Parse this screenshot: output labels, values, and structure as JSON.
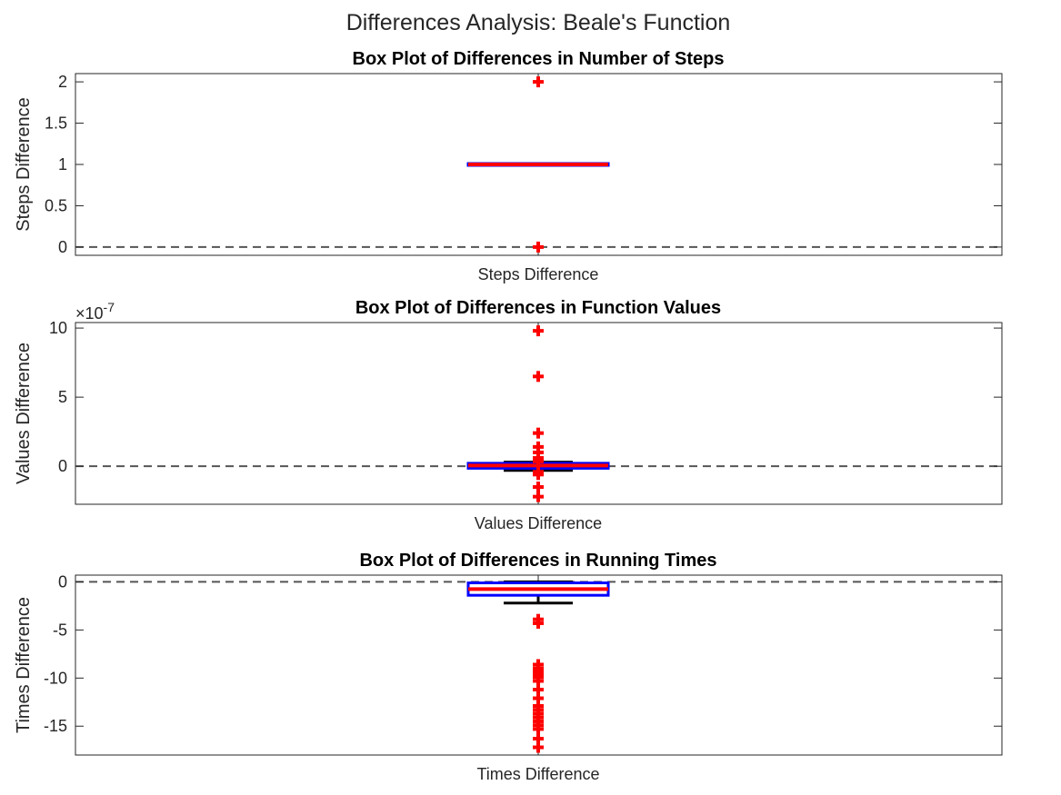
{
  "figure_title": "Differences Analysis: Beale's Function",
  "colors": {
    "median": "#ff0000",
    "box": "#0000ff",
    "outlier": "#ff0000",
    "whisker": "#000000",
    "zero_line": "#555555",
    "axes": "#262626"
  },
  "chart_data": [
    {
      "type": "box",
      "title": "Box Plot of Differences in Number of Steps",
      "xlabel": "Steps Difference",
      "ylabel": "Steps Difference",
      "ylim": [
        -0.1,
        2.1
      ],
      "yticks": [
        0,
        0.5,
        1,
        1.5,
        2
      ],
      "ytick_labels": [
        "0",
        "0.5",
        "1",
        "1.5",
        "2"
      ],
      "exponent_label": "",
      "zero_line": 0,
      "box": {
        "q1": 1,
        "median": 1,
        "q3": 1,
        "whisker_low": 1,
        "whisker_high": 1
      },
      "outliers": [
        2,
        0
      ]
    },
    {
      "type": "box",
      "title": "Box Plot of Differences in Function Values",
      "xlabel": "Values Difference",
      "ylabel": "Values Difference",
      "ylim": [
        -2.75,
        10.4
      ],
      "yticks": [
        0,
        5,
        10
      ],
      "ytick_labels": [
        "0",
        "5",
        "10"
      ],
      "exponent_label": "×10",
      "exponent_power": "-7",
      "zero_line": 0,
      "box": {
        "q1": -0.08,
        "median": 0.05,
        "q3": 0.15,
        "whisker_low": -0.3,
        "whisker_high": 0.3
      },
      "outliers": [
        9.8,
        6.5,
        2.4,
        1.4,
        1.0,
        0.6,
        0.35,
        -0.4,
        -0.6,
        -1.5,
        -2.2
      ]
    },
    {
      "type": "box",
      "title": "Box Plot of Differences in Running Times",
      "xlabel": "Times Difference",
      "ylabel": "Times Difference",
      "ylim": [
        -18,
        0.7
      ],
      "yticks": [
        -15,
        -10,
        -5,
        0
      ],
      "ytick_labels": [
        "-15",
        "-10",
        "-5",
        "0"
      ],
      "exponent_label": "",
      "zero_line": 0,
      "box": {
        "q1": -1.3,
        "median": -0.75,
        "q3": -0.2,
        "whisker_low": -2.2,
        "whisker_high": 0
      },
      "outliers": [
        -3.9,
        -4.3,
        -8.6,
        -9.0,
        -9.3,
        -9.6,
        -9.9,
        -10.3,
        -11.2,
        -12.1,
        -12.9,
        -13.3,
        -13.7,
        -14.1,
        -14.5,
        -14.9,
        -15.3,
        -16.3,
        -17.2
      ]
    }
  ]
}
